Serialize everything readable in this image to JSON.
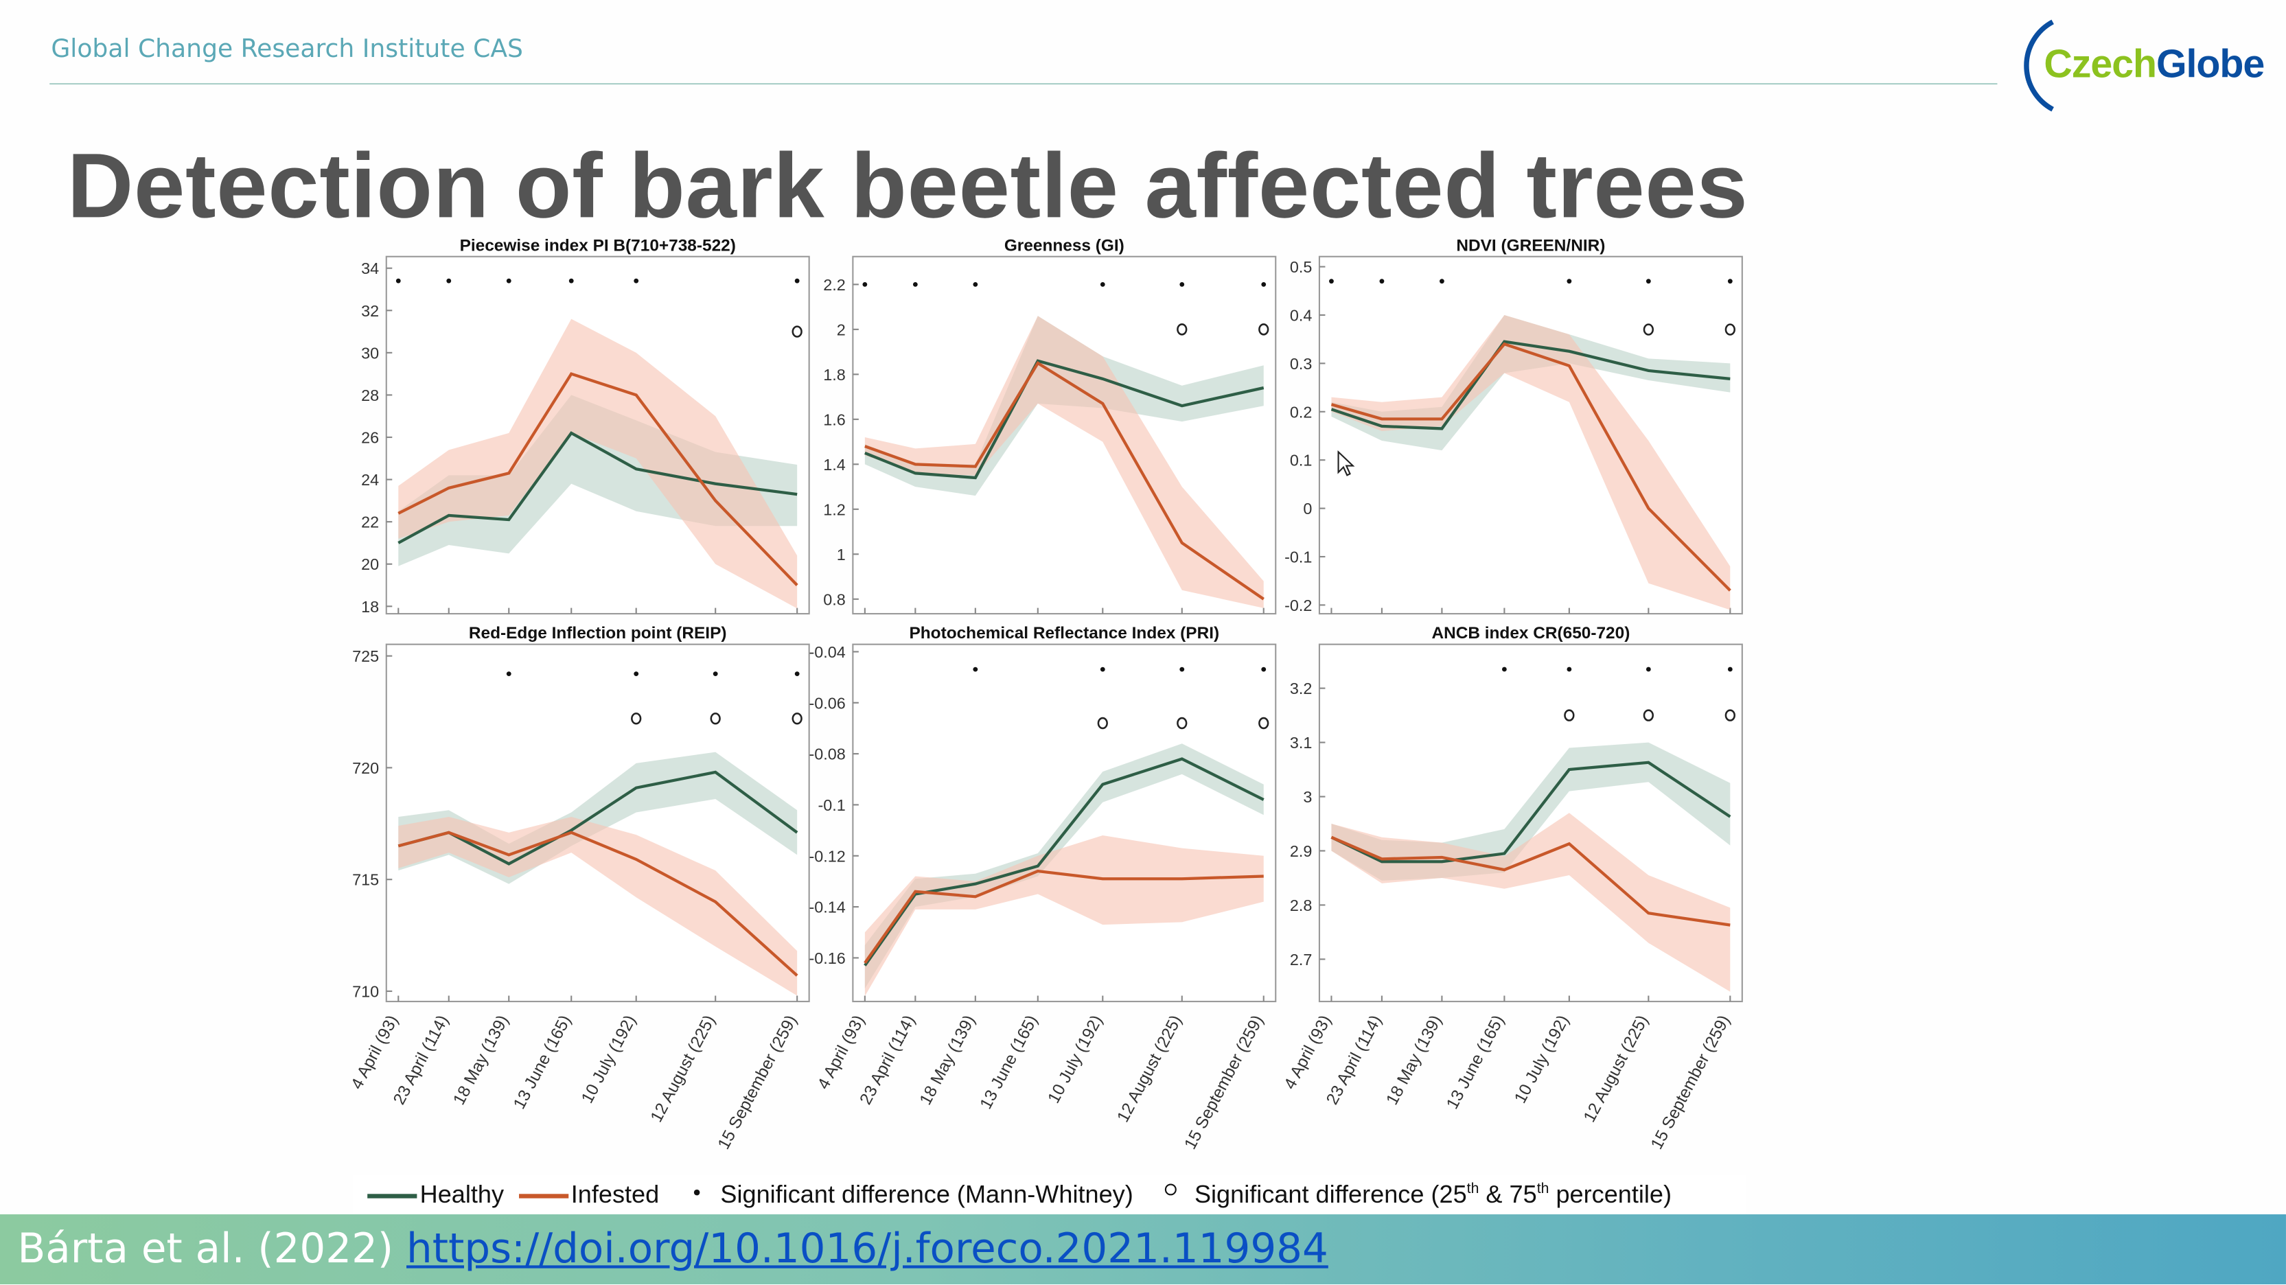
{
  "header": {
    "institute": "Global Change Research Institute CAS",
    "logo_text_1": "Czech",
    "logo_text_2": "Globe"
  },
  "slide": {
    "title": "Detection of bark beetle affected trees"
  },
  "legend": {
    "healthy": "Healthy",
    "infested": "Infested",
    "mann_whitney": "Significant difference (Mann-Whitney)",
    "percentile_prefix": "Significant difference (25",
    "th1": "th",
    "percentile_mid": " & 75",
    "th2": "th",
    "percentile_suffix": " percentile)"
  },
  "footer": {
    "citation": "Bárta et al. (2022) ",
    "link": "https://doi.org/10.1016/j.foreco.2021.119984"
  },
  "colors": {
    "healthy": "#2e5e46",
    "healthy_band": "#c5d8d0",
    "infested": "#c8582a",
    "infested_band": "#f7c3b3"
  },
  "chart_data": [
    {
      "type": "line",
      "title": "Piecewise index PI B(710+738-522)",
      "x": [
        93,
        114,
        139,
        165,
        192,
        225,
        259
      ],
      "xlim": [
        88,
        264
      ],
      "ylim": [
        17.65,
        34.55
      ],
      "yticks": [
        18,
        20,
        22,
        24,
        26,
        28,
        30,
        32,
        34
      ],
      "series": [
        {
          "name": "Healthy",
          "values": [
            21.0,
            22.3,
            22.1,
            26.2,
            24.5,
            23.8,
            23.3
          ],
          "lo": [
            19.9,
            20.9,
            20.5,
            23.8,
            22.5,
            21.8,
            21.8
          ],
          "hi": [
            22.5,
            24.2,
            24.2,
            28.0,
            26.8,
            25.3,
            24.7
          ]
        },
        {
          "name": "Infested",
          "values": [
            22.4,
            23.6,
            24.3,
            29.0,
            28.0,
            23.0,
            19.0
          ],
          "lo": [
            21.2,
            22.0,
            22.3,
            26.2,
            25.0,
            20.0,
            17.9
          ],
          "hi": [
            23.7,
            25.4,
            26.2,
            31.6,
            30.0,
            27.0,
            20.4
          ]
        }
      ],
      "mann_whitney": [
        0,
        1,
        2,
        3,
        4,
        6
      ],
      "mw_y": 33.4,
      "percentile": [
        6
      ],
      "pc_y": 31.0
    },
    {
      "type": "line",
      "title": "Greenness (GI)",
      "x": [
        93,
        114,
        139,
        165,
        192,
        225,
        259
      ],
      "xlim": [
        88,
        264
      ],
      "ylim": [
        0.735,
        2.324
      ],
      "yticks": [
        0.8,
        1,
        1.2,
        1.4,
        1.6,
        1.8,
        2,
        2.2
      ],
      "series": [
        {
          "name": "Healthy",
          "values": [
            1.45,
            1.36,
            1.34,
            1.86,
            1.78,
            1.66,
            1.74
          ],
          "lo": [
            1.4,
            1.3,
            1.26,
            1.67,
            1.65,
            1.59,
            1.66
          ],
          "hi": [
            1.49,
            1.4,
            1.4,
            2.06,
            1.88,
            1.75,
            1.84
          ]
        },
        {
          "name": "Infested",
          "values": [
            1.48,
            1.4,
            1.39,
            1.85,
            1.67,
            1.05,
            0.8
          ],
          "lo": [
            1.44,
            1.36,
            1.35,
            1.67,
            1.5,
            0.84,
            0.76
          ],
          "hi": [
            1.52,
            1.47,
            1.49,
            2.06,
            1.88,
            1.3,
            0.88
          ]
        }
      ],
      "mann_whitney": [
        0,
        1,
        2,
        4,
        5,
        6
      ],
      "mw_y": 2.2,
      "percentile": [
        5,
        6
      ],
      "pc_y": 2.0
    },
    {
      "type": "line",
      "title": "NDVI (GREEN/NIR)",
      "x": [
        93,
        114,
        139,
        165,
        192,
        225,
        259
      ],
      "xlim": [
        88,
        264
      ],
      "ylim": [
        -0.218,
        0.521
      ],
      "yticks": [
        -0.2,
        -0.1,
        0,
        0.1,
        0.2,
        0.3,
        0.4,
        0.5
      ],
      "series": [
        {
          "name": "Healthy",
          "values": [
            0.205,
            0.17,
            0.165,
            0.345,
            0.325,
            0.285,
            0.268
          ],
          "lo": [
            0.19,
            0.14,
            0.12,
            0.28,
            0.3,
            0.265,
            0.24
          ],
          "hi": [
            0.22,
            0.2,
            0.21,
            0.4,
            0.36,
            0.31,
            0.3
          ]
        },
        {
          "name": "Infested",
          "values": [
            0.215,
            0.185,
            0.185,
            0.34,
            0.295,
            0.0,
            -0.17
          ],
          "lo": [
            0.2,
            0.16,
            0.17,
            0.28,
            0.22,
            -0.155,
            -0.21
          ],
          "hi": [
            0.23,
            0.22,
            0.23,
            0.4,
            0.36,
            0.14,
            -0.12
          ]
        }
      ],
      "mann_whitney": [
        0,
        1,
        2,
        4,
        5,
        6
      ],
      "mw_y": 0.47,
      "percentile": [
        5,
        6
      ],
      "pc_y": 0.37
    },
    {
      "type": "line",
      "title": "Red-Edge Inflection point (REIP)",
      "x": [
        93,
        114,
        139,
        165,
        192,
        225,
        259
      ],
      "xlim": [
        88,
        264
      ],
      "ylim": [
        709.54,
        725.52
      ],
      "yticks": [
        710,
        715,
        720,
        725
      ],
      "series": [
        {
          "name": "Healthy",
          "values": [
            716.5,
            717.1,
            715.7,
            717.2,
            719.1,
            719.8,
            717.1
          ],
          "lo": [
            715.4,
            716.1,
            714.8,
            716.5,
            718.0,
            718.6,
            716.1
          ],
          "hi": [
            717.8,
            718.1,
            716.6,
            718.0,
            720.2,
            720.7,
            718.1
          ]
        },
        {
          "name": "Infested",
          "values": [
            716.5,
            717.1,
            716.1,
            717.1,
            715.9,
            714.0,
            710.7
          ],
          "lo": [
            715.5,
            716.2,
            715.1,
            716.2,
            714.2,
            712.0,
            709.8
          ],
          "hi": [
            717.4,
            717.8,
            717.1,
            717.8,
            717.0,
            715.4,
            711.8
          ]
        }
      ],
      "mann_whitney": [
        2,
        4,
        5,
        6
      ],
      "mw_y": 724.2,
      "percentile": [
        4,
        5,
        6
      ],
      "pc_y": 722.2
    },
    {
      "type": "line",
      "title": "Photochemical Reflectance Index (PRI)",
      "x": [
        93,
        114,
        139,
        165,
        192,
        225,
        259
      ],
      "xlim": [
        88,
        264
      ],
      "ylim": [
        -0.1771,
        -0.0371
      ],
      "yticks": [
        -0.16,
        -0.14,
        -0.12,
        -0.1,
        -0.08,
        -0.06,
        -0.04
      ],
      "series": [
        {
          "name": "Healthy",
          "values": [
            -0.163,
            -0.135,
            -0.131,
            -0.124,
            -0.092,
            -0.082,
            -0.098
          ],
          "lo": [
            -0.172,
            -0.14,
            -0.136,
            -0.128,
            -0.099,
            -0.088,
            -0.104
          ],
          "hi": [
            -0.155,
            -0.129,
            -0.127,
            -0.119,
            -0.087,
            -0.076,
            -0.092
          ]
        },
        {
          "name": "Infested",
          "values": [
            -0.162,
            -0.134,
            -0.136,
            -0.126,
            -0.129,
            -0.129,
            -0.128
          ],
          "lo": [
            -0.175,
            -0.141,
            -0.141,
            -0.135,
            -0.147,
            -0.146,
            -0.138
          ],
          "hi": [
            -0.15,
            -0.128,
            -0.13,
            -0.12,
            -0.112,
            -0.117,
            -0.12
          ]
        }
      ],
      "mann_whitney": [
        2,
        4,
        5,
        6
      ],
      "mw_y": -0.0469,
      "percentile": [
        4,
        5,
        6
      ],
      "pc_y": -0.068
    },
    {
      "type": "line",
      "title": "ANCB index CR(650-720)",
      "x": [
        93,
        114,
        139,
        165,
        192,
        225,
        259
      ],
      "xlim": [
        88,
        264
      ],
      "ylim": [
        2.622,
        3.281
      ],
      "yticks": [
        2.7,
        2.8,
        2.9,
        3,
        3.1,
        3.2
      ],
      "series": [
        {
          "name": "Healthy",
          "values": [
            2.925,
            2.88,
            2.88,
            2.895,
            3.05,
            3.063,
            2.963
          ],
          "lo": [
            2.9,
            2.845,
            2.85,
            2.86,
            3.01,
            3.027,
            2.91
          ],
          "hi": [
            2.95,
            2.92,
            2.915,
            2.94,
            3.09,
            3.1,
            3.025
          ]
        },
        {
          "name": "Infested",
          "values": [
            2.925,
            2.885,
            2.888,
            2.865,
            2.913,
            2.785,
            2.763
          ],
          "lo": [
            2.9,
            2.84,
            2.85,
            2.83,
            2.855,
            2.73,
            2.64
          ],
          "hi": [
            2.95,
            2.925,
            2.915,
            2.89,
            2.97,
            2.855,
            2.795
          ]
        }
      ],
      "mann_whitney": [
        3,
        4,
        5,
        6
      ],
      "mw_y": 3.235,
      "percentile": [
        4,
        5,
        6
      ],
      "pc_y": 3.15
    }
  ],
  "x_tick_labels": [
    "4 April (93)",
    "23 April (114)",
    "18 May (139)",
    "13 June (165)",
    "10 July (192)",
    "12 August (225)",
    "15 September (259)"
  ]
}
